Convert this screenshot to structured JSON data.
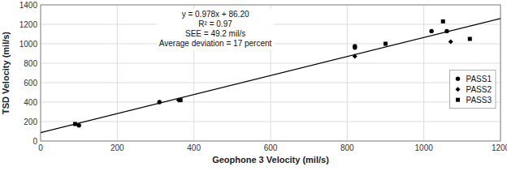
{
  "chart_data": {
    "type": "scatter",
    "xlabel": "Geophone 3 Velocity (mil/s)",
    "ylabel": "TSD Velocity (mil/s)",
    "annotation": [
      "y = 0.978x + 86.20",
      "R² = 0.97",
      "SEE = 49.2 mil/s",
      "Average deviation = 17 percent"
    ],
    "series": [
      {
        "type": "line",
        "color": "black",
        "x": [
          0,
          1200
        ],
        "values": [
          86.2,
          1259.8
        ]
      },
      {
        "name": "PASS1",
        "type": "scatter",
        "marker": "circle",
        "color": "black",
        "x": [
          100,
          310,
          820,
          820,
          1020,
          1060
        ],
        "values": [
          160,
          400,
          960,
          975,
          1130,
          1130
        ]
      },
      {
        "name": "PASS2",
        "type": "scatter",
        "marker": "diamond",
        "color": "black",
        "x": [
          360,
          820,
          1070
        ],
        "values": [
          420,
          870,
          1020
        ]
      },
      {
        "name": "PASS3",
        "type": "scatter",
        "marker": "square",
        "color": "black",
        "x": [
          90,
          365,
          900,
          1050,
          1120
        ],
        "values": [
          175,
          420,
          1000,
          1230,
          1050
        ]
      }
    ],
    "xlim": [
      0,
      1200
    ],
    "ylim": [
      0,
      1400
    ],
    "xticks": [
      0,
      200,
      400,
      600,
      800,
      1000,
      1200
    ],
    "yticks": [
      0,
      200,
      400,
      600,
      800,
      1000,
      1200,
      1400
    ],
    "grid": true,
    "legend": "right"
  }
}
